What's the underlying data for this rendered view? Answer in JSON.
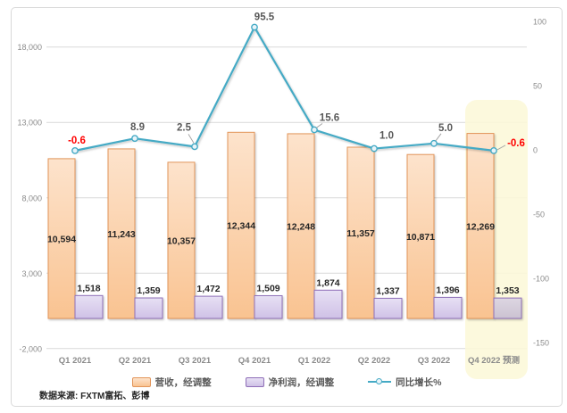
{
  "source_note": "数据来源: FXTM富拓、彭博",
  "chart_data": {
    "type": "bar+line combo",
    "categories": [
      "Q1 2021",
      "Q2 2021",
      "Q3 2021",
      "Q4 2021",
      "Q1 2022",
      "Q2 2022",
      "Q3 2022",
      "Q4 2022 预测"
    ],
    "series": [
      {
        "name": "营收，经调整",
        "type": "bar",
        "axis": "left",
        "values": [
          10594,
          11243,
          10357,
          12344,
          12248,
          11357,
          10871,
          12269
        ],
        "labels": [
          "10,594",
          "11,243",
          "10,357",
          "12,344",
          "12,248",
          "11,357",
          "10,871",
          "12,269"
        ],
        "fill_top": "#FDE3CC",
        "fill_bottom": "#F9C391",
        "border": "#E2955A"
      },
      {
        "name": "净利润，经调整",
        "type": "bar",
        "axis": "left",
        "values": [
          1518,
          1359,
          1472,
          1509,
          1874,
          1337,
          1396,
          1353
        ],
        "labels": [
          "1,518",
          "1,359",
          "1,472",
          "1,509",
          "1,874",
          "1,337",
          "1,396",
          "1,353"
        ],
        "fill_top": "#E7E0F4",
        "fill_bottom": "#CFC1E6",
        "border": "#8F6FB8"
      },
      {
        "name": "同比增长%",
        "type": "line",
        "axis": "right",
        "values": [
          -0.6,
          8.9,
          2.5,
          95.5,
          15.6,
          1.0,
          5.0,
          -0.6
        ],
        "labels": [
          "-0.6",
          "8.9",
          "2.5",
          "95.5",
          "15.6",
          "1.0",
          "5.0",
          "-0.6"
        ],
        "label_colors": [
          "#FF0000",
          "#595959",
          "#595959",
          "#595959",
          "#595959",
          "#595959",
          "#595959",
          "#FF0000"
        ],
        "color": "#45AAC5",
        "marker_fill": "#E8F4F9"
      }
    ],
    "left_axis": {
      "ticks": [
        "18,000",
        "13,000",
        "8,000",
        "3,000",
        "-2,000"
      ],
      "tick_values": [
        18000,
        13000,
        8000,
        3000,
        -2000
      ],
      "min": -2000,
      "max": 18000
    },
    "right_axis": {
      "ticks": [
        "100",
        "50",
        "0",
        "-50",
        "-100",
        "-150"
      ],
      "tick_values": [
        100,
        50,
        0,
        -50,
        -100,
        -150
      ],
      "min": -150,
      "max": 100
    },
    "highlight": {
      "category": "Q4 2022 预测",
      "band_color": "#FCF8D8",
      "forecast_bar_fill_top": "#DDD6E2",
      "forecast_bar_fill_bottom": "#CBC2D1"
    },
    "grid": true,
    "gridline_color": "#D9D9D9",
    "legend_position": "bottom"
  }
}
